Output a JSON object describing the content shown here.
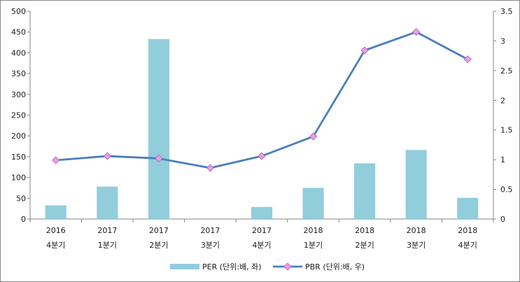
{
  "chart_data": {
    "type": "bar+line",
    "categories": [
      [
        "2016",
        "4분기"
      ],
      [
        "2017",
        "1분기"
      ],
      [
        "2017",
        "2분기"
      ],
      [
        "2017",
        "3분기"
      ],
      [
        "2017",
        "4분기"
      ],
      [
        "2018",
        "1분기"
      ],
      [
        "2018",
        "2분기"
      ],
      [
        "2018",
        "3분기"
      ],
      [
        "2018",
        "4분기"
      ]
    ],
    "series": [
      {
        "name": "PER (단위:배, 좌)",
        "type": "bar",
        "axis": "left",
        "color": "#92cddc",
        "values": [
          33,
          78,
          433,
          null,
          29,
          75,
          134,
          166,
          51
        ]
      },
      {
        "name": "PBR (단위:배, 우)",
        "type": "line",
        "axis": "right",
        "color": "#4a7ebb",
        "marker_color": "#e79ee6",
        "values": [
          0.99,
          1.06,
          1.02,
          0.86,
          1.06,
          1.39,
          2.84,
          3.15,
          2.69
        ]
      }
    ],
    "y_left": {
      "min": 0,
      "max": 500,
      "ticks": [
        "0",
        "50",
        "100",
        "150",
        "200",
        "250",
        "300",
        "350",
        "400",
        "450",
        "500"
      ]
    },
    "y_right": {
      "min": 0,
      "max": 3.5,
      "ticks": [
        "0",
        "0.5",
        "1",
        "1.5",
        "2",
        "2.5",
        "3",
        "3.5"
      ]
    },
    "legend_position": "bottom",
    "grid": false
  }
}
